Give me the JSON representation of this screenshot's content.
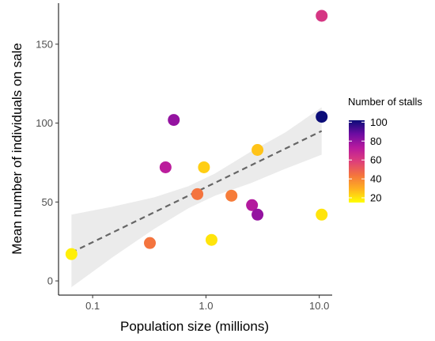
{
  "chart_data": {
    "type": "scatter",
    "title": "",
    "xlabel": "Population size (millions)",
    "ylabel": "Mean number of individuals on sale",
    "x_scale": "log10",
    "xlim": [
      0.05,
      13
    ],
    "ylim": [
      -9,
      176
    ],
    "x_ticks": [
      0.1,
      1.0,
      10.0
    ],
    "x_tick_labels": [
      "0.1",
      "1.0",
      "10.0"
    ],
    "y_ticks": [
      0,
      50,
      100,
      150
    ],
    "y_tick_labels": [
      "0",
      "50",
      "100",
      "150"
    ],
    "grid": false,
    "legend": {
      "title": "Number of stalls",
      "type": "colorbar",
      "placement": "right",
      "range": [
        15,
        102
      ],
      "ticks": [
        20,
        40,
        60,
        80,
        100
      ],
      "tick_labels": [
        "20",
        "40",
        "60",
        "80",
        "100"
      ],
      "colors": [
        "#FFFF00",
        "#FFB020",
        "#F4743E",
        "#DE3F7A",
        "#B81A9E",
        "#6D0CA2",
        "#0B0C78"
      ]
    },
    "points": [
      {
        "x": 0.065,
        "y": 17,
        "stalls": 18
      },
      {
        "x": 0.32,
        "y": 24,
        "stalls": 44
      },
      {
        "x": 0.44,
        "y": 72,
        "stalls": 72
      },
      {
        "x": 0.52,
        "y": 102,
        "stalls": 80
      },
      {
        "x": 0.84,
        "y": 55,
        "stalls": 44
      },
      {
        "x": 0.96,
        "y": 72,
        "stalls": 24
      },
      {
        "x": 1.12,
        "y": 26,
        "stalls": 20
      },
      {
        "x": 1.68,
        "y": 54,
        "stalls": 42
      },
      {
        "x": 2.55,
        "y": 48,
        "stalls": 74
      },
      {
        "x": 2.85,
        "y": 42,
        "stalls": 80
      },
      {
        "x": 2.85,
        "y": 83,
        "stalls": 26
      },
      {
        "x": 10.5,
        "y": 168,
        "stalls": 62
      },
      {
        "x": 10.5,
        "y": 104,
        "stalls": 102
      },
      {
        "x": 10.5,
        "y": 42,
        "stalls": 20
      }
    ],
    "trend_line": {
      "style": "dashed",
      "color": "#666666",
      "x": [
        0.065,
        10.5
      ],
      "y": [
        18,
        95
      ],
      "confidence_band": {
        "color": "#ebebeb",
        "x": [
          0.065,
          0.15,
          0.35,
          0.7,
          1.2,
          2.5,
          5,
          10.5
        ],
        "lower": [
          -4,
          15,
          33,
          46,
          54,
          62,
          71,
          80
        ],
        "upper": [
          42,
          47,
          53,
          60,
          68,
          82,
          94,
          110
        ]
      }
    }
  }
}
